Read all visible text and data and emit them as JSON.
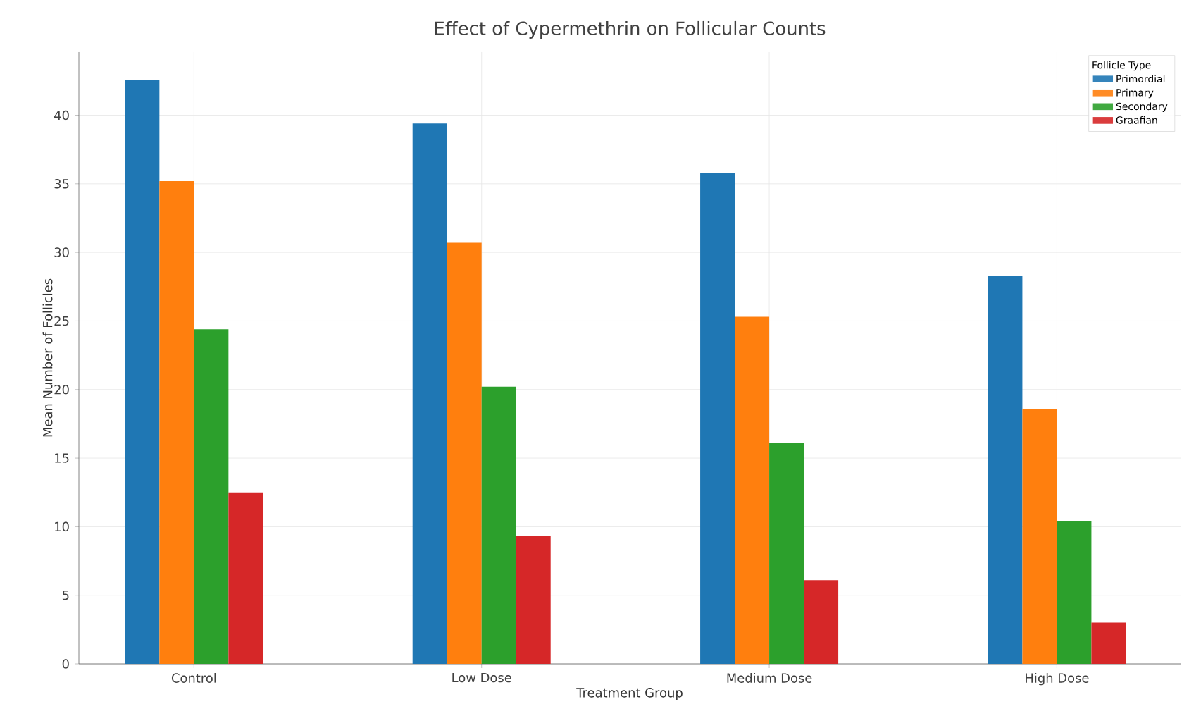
{
  "chart_data": {
    "type": "bar",
    "title": "Effect of Cypermethrin on Follicular Counts",
    "xlabel": "Treatment Group",
    "ylabel": "Mean Number of Follicles",
    "legend_title": "Follicle Type",
    "categories": [
      "Control",
      "Low Dose",
      "Medium Dose",
      "High Dose"
    ],
    "series": [
      {
        "name": "Primordial",
        "color": "#1f77b4",
        "values": [
          42.6,
          39.4,
          35.8,
          28.3
        ]
      },
      {
        "name": "Primary",
        "color": "#ff7f0e",
        "values": [
          35.2,
          30.7,
          25.3,
          18.6
        ]
      },
      {
        "name": "Secondary",
        "color": "#2ca02c",
        "values": [
          24.4,
          20.2,
          16.1,
          10.4
        ]
      },
      {
        "name": "Graafian",
        "color": "#d62728",
        "values": [
          12.5,
          9.3,
          6.1,
          3.0
        ]
      }
    ],
    "ylim": [
      0,
      44.6
    ],
    "yticks": [
      0,
      5,
      10,
      15,
      20,
      25,
      30,
      35,
      40
    ],
    "grid": true,
    "legend": "top right"
  }
}
